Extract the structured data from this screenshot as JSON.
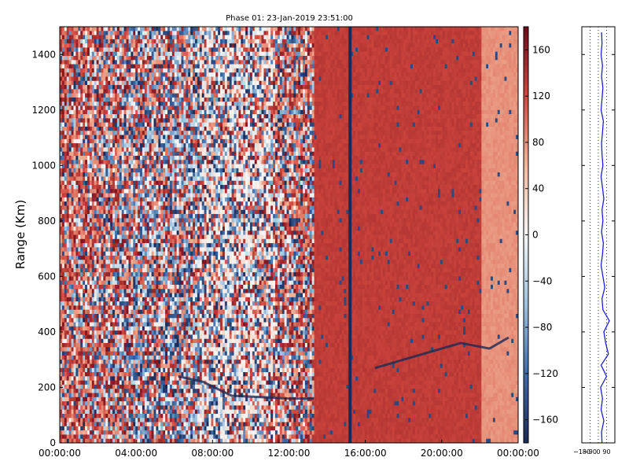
{
  "chart_data": [
    {
      "type": "heatmap",
      "title": "Phase 01: 23-Jan-2019 23:51:00",
      "xlabel": "",
      "ylabel": "Range (Km)",
      "x_tick_labels": [
        "00:00:00",
        "04:00:00",
        "08:00:00",
        "12:00:00",
        "16:00:00",
        "20:00:00",
        "00:00:00"
      ],
      "x_tick_hours": [
        0,
        4,
        8,
        12,
        16,
        20,
        24
      ],
      "xlim_hours": [
        0,
        24
      ],
      "y_tick_labels": [
        "0",
        "200",
        "400",
        "600",
        "800",
        "1000",
        "1200",
        "1400"
      ],
      "y_ticks": [
        0,
        200,
        400,
        600,
        800,
        1000,
        1200,
        1400
      ],
      "ylim": [
        0,
        1500
      ],
      "colorbar": {
        "tick_labels": [
          "160",
          "120",
          "80",
          "40",
          "0",
          "−40",
          "−80",
          "−120",
          "−160"
        ],
        "ticks": [
          160,
          120,
          80,
          40,
          0,
          -40,
          -80,
          -120,
          -160
        ],
        "range": [
          -180,
          180
        ],
        "colormap": [
          "#1a2a55",
          "#3d6aa8",
          "#9dc3df",
          "#f7f7f7",
          "#f3b79a",
          "#d0473e",
          "#6b0a1a"
        ]
      },
      "regions": [
        {
          "hours": [
            0,
            13.3
          ],
          "pattern": "noisy-random"
        },
        {
          "hours": [
            13.3,
            22.1
          ],
          "pattern": "uniform",
          "value": 130
        },
        {
          "hours": [
            22.1,
            24
          ],
          "pattern": "uniform",
          "value": 80
        }
      ],
      "traces": [
        {
          "hours": [
            6.2,
            7.5,
            9.0,
            10.5,
            12.0,
            13.3
          ],
          "range_km": [
            240,
            220,
            170,
            165,
            160,
            160
          ]
        },
        {
          "hours": [
            16.5,
            18.0,
            19.5,
            21.0,
            22.5,
            23.5
          ],
          "range_km": [
            270,
            300,
            330,
            360,
            340,
            380
          ]
        }
      ],
      "vertical_line_hour": 15.2
    },
    {
      "type": "line",
      "title": "",
      "xlabel": "",
      "ylabel": "",
      "x_tick_labels": [
        "−180",
        "−90",
        "0",
        "90"
      ],
      "x_ticks": [
        -180,
        -90,
        0,
        90
      ],
      "xlim": [
        -180,
        180
      ],
      "ylim": [
        0,
        1500
      ],
      "grid": "vertical-dotted",
      "series": [
        {
          "range_km": [
            0,
            40,
            80,
            120,
            160,
            200,
            240,
            280,
            320,
            360,
            400,
            440,
            480,
            520,
            560,
            600,
            640,
            680,
            720,
            760,
            800,
            840,
            880,
            920,
            960,
            1000,
            1040,
            1080,
            1120,
            1160,
            1200,
            1240,
            1280,
            1320,
            1360,
            1400,
            1440,
            1480
          ],
          "values": [
            40,
            35,
            60,
            30,
            45,
            25,
            90,
            30,
            110,
            80,
            60,
            120,
            50,
            40,
            70,
            50,
            30,
            45,
            55,
            35,
            50,
            40,
            60,
            45,
            30,
            50,
            40,
            35,
            45,
            55,
            30,
            40,
            50,
            35,
            45,
            30,
            40,
            35
          ]
        }
      ]
    }
  ]
}
